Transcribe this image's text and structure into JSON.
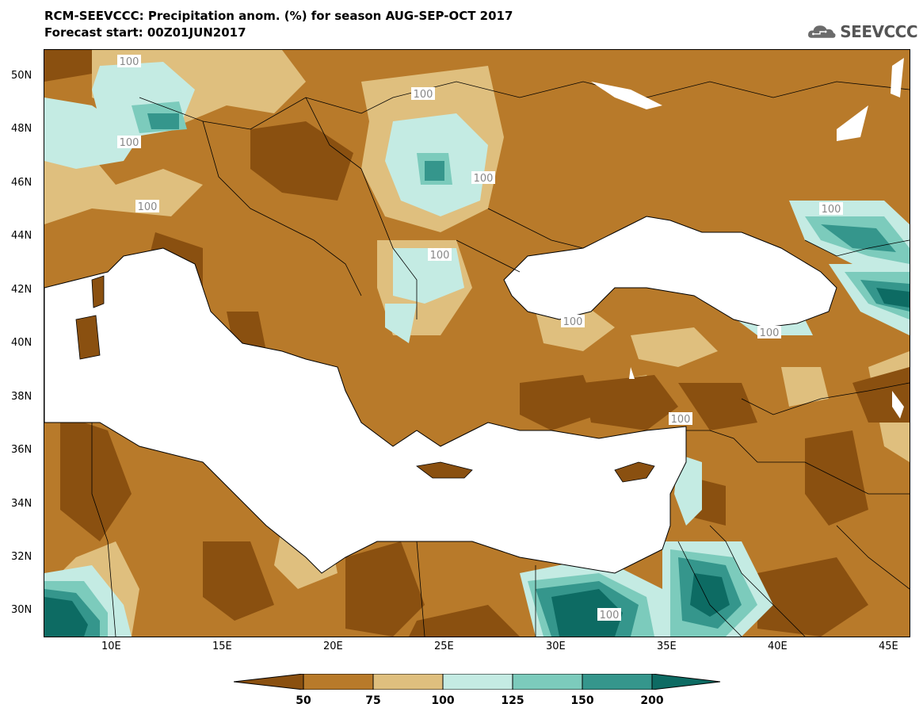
{
  "title": {
    "line1": "RCM-SEEVCCC: Precipitation anom. (%) for season AUG-SEP-OCT 2017",
    "line2": "Forecast start: 00Z01JUN2017"
  },
  "logo": {
    "text": "SEEVCCC",
    "icon": "cloud-icon"
  },
  "map": {
    "lat_ticks": [
      "50N",
      "48N",
      "46N",
      "44N",
      "42N",
      "40N",
      "38N",
      "36N",
      "34N",
      "32N",
      "30N"
    ],
    "lon_ticks": [
      "10E",
      "15E",
      "20E",
      "25E",
      "30E",
      "35E",
      "40E",
      "45E"
    ],
    "contour_label": "100",
    "colors": {
      "below_50": "#8a5010",
      "c50_75": "#b87a2a",
      "c75_100": "#dfbf7e",
      "c100_125": "#c4ebe3",
      "c125_150": "#7ccbbc",
      "c150_200": "#35968c",
      "above_200": "#0d6b63",
      "sea": "#ffffff"
    }
  },
  "colorbar": {
    "labels": [
      "50",
      "75",
      "100",
      "125",
      "150",
      "200"
    ],
    "colors": [
      "#8a5010",
      "#b87a2a",
      "#dfbf7e",
      "#c4ebe3",
      "#7ccbbc",
      "#35968c",
      "#0d6b63"
    ]
  }
}
